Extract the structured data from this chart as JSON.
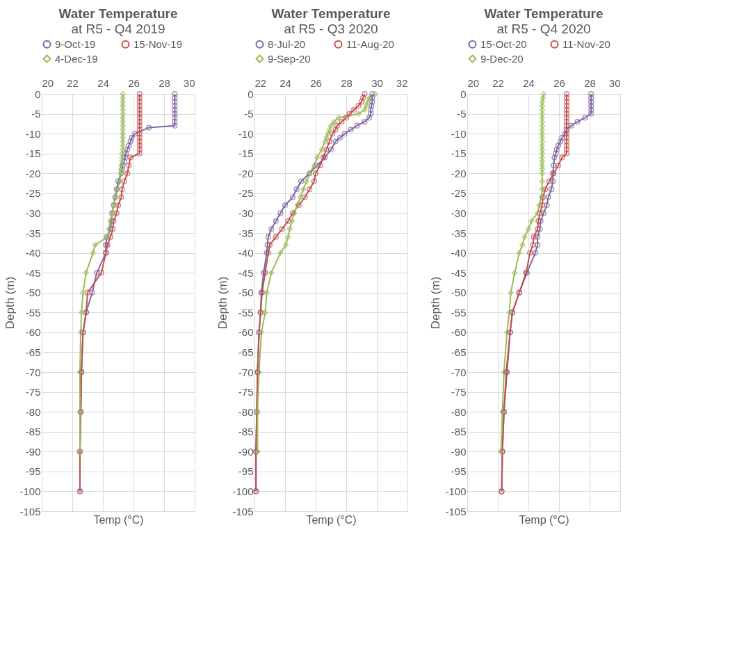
{
  "chart_data": [
    {
      "type": "line",
      "title": "Water Temperature",
      "subtitle": "at R5 - Q4 2019",
      "xlabel": "Temp (°C)",
      "ylabel": "Depth (m)",
      "xlim": [
        20,
        30
      ],
      "xticks": [
        20,
        22,
        24,
        26,
        28,
        30
      ],
      "ylim": [
        -105,
        0
      ],
      "yticks": [
        0,
        -5,
        -10,
        -15,
        -20,
        -25,
        -30,
        -35,
        -40,
        -45,
        -50,
        -55,
        -60,
        -65,
        -70,
        -75,
        -80,
        -85,
        -90,
        -95,
        -100,
        -105
      ],
      "grid": true,
      "legend": "top",
      "series": [
        {
          "name": "9-Oct-19",
          "color": "#8064a2",
          "marker": "circle",
          "x": [
            28.7,
            28.7,
            28.7,
            28.7,
            28.7,
            28.7,
            28.7,
            28.7,
            28.7,
            27.0,
            26.1,
            25.9,
            25.8,
            25.7,
            25.6,
            25.5,
            25.45,
            25.4,
            25.3,
            25.25,
            25.2,
            25.0,
            24.9,
            24.8,
            24.7,
            24.6,
            24.55,
            24.5,
            24.25,
            24.2,
            24.2,
            23.6,
            23.3,
            22.9,
            22.7,
            22.6,
            22.55,
            22.5,
            22.5
          ],
          "values": [
            0,
            -1,
            -2,
            -3,
            -4,
            -5,
            -6,
            -7,
            -8,
            -8.5,
            -10,
            -11,
            -12,
            -13,
            -14,
            -15,
            -16,
            -17,
            -18,
            -19,
            -20,
            -22,
            -24,
            -26,
            -28,
            -30,
            -32,
            -34,
            -36,
            -38,
            -40,
            -45,
            -50,
            -55,
            -60,
            -70,
            -80,
            -90,
            -100
          ]
        },
        {
          "name": "15-Nov-19",
          "color": "#c0504d",
          "marker": "circle",
          "x": [
            26.4,
            26.4,
            26.4,
            26.4,
            26.4,
            26.4,
            26.4,
            26.4,
            26.4,
            26.4,
            26.4,
            26.4,
            26.4,
            26.4,
            26.4,
            26.4,
            25.8,
            25.7,
            25.6,
            25.4,
            25.25,
            25.2,
            25.0,
            24.9,
            24.7,
            24.65,
            24.5,
            24.3,
            24.2,
            23.9,
            23.0,
            22.9,
            22.7,
            22.6,
            22.55,
            22.5,
            22.5
          ],
          "values": [
            0,
            -1,
            -2,
            -3,
            -4,
            -5,
            -6,
            -7,
            -8,
            -9,
            -10,
            -11,
            -12,
            -13,
            -14,
            -15,
            -16,
            -18,
            -20,
            -22,
            -24,
            -26,
            -28,
            -30,
            -32,
            -34,
            -36,
            -38,
            -40,
            -45,
            -50,
            -55,
            -60,
            -70,
            -80,
            -90,
            -100
          ]
        },
        {
          "name": "4-Dec-19",
          "color": "#9bbb59",
          "marker": "diamond",
          "x": [
            25.3,
            25.3,
            25.3,
            25.3,
            25.3,
            25.3,
            25.3,
            25.3,
            25.3,
            25.3,
            25.3,
            25.3,
            25.3,
            25.3,
            25.3,
            25.25,
            25.25,
            25.25,
            25.2,
            25.2,
            25.2,
            25.1,
            24.95,
            24.85,
            24.7,
            24.6,
            24.5,
            24.4,
            24.3,
            23.5,
            23.35,
            22.9,
            22.7,
            22.6,
            22.55,
            22.5,
            22.5,
            22.5
          ],
          "values": [
            0,
            -1,
            -2,
            -3,
            -4,
            -5,
            -6,
            -7,
            -8,
            -9,
            -10,
            -11,
            -12,
            -13,
            -14,
            -15,
            -16,
            -17,
            -18,
            -19,
            -20,
            -22,
            -24,
            -26,
            -28,
            -30,
            -32,
            -34,
            -36,
            -38,
            -40,
            -45,
            -50,
            -55,
            -60,
            -70,
            -80,
            -90
          ]
        }
      ]
    },
    {
      "type": "line",
      "title": "Water Temperature",
      "subtitle": "at R5 - Q3 2020",
      "xlabel": "Temp (°C)",
      "ylabel": "Depth (m)",
      "xlim": [
        22,
        32
      ],
      "xticks": [
        22,
        24,
        26,
        28,
        30,
        32
      ],
      "ylim": [
        -105,
        0
      ],
      "yticks": [
        0,
        -5,
        -10,
        -15,
        -20,
        -25,
        -30,
        -35,
        -40,
        -45,
        -50,
        -55,
        -60,
        -65,
        -70,
        -75,
        -80,
        -85,
        -90,
        -95,
        -100,
        -105
      ],
      "grid": true,
      "legend": "top",
      "series": [
        {
          "name": "8-Jul-20",
          "color": "#8064a2",
          "marker": "circle",
          "x": [
            29.7,
            29.7,
            29.7,
            29.65,
            29.6,
            29.6,
            29.5,
            29.2,
            28.7,
            28.3,
            27.9,
            27.6,
            27.3,
            27.0,
            26.6,
            26.1,
            25.6,
            25.05,
            24.75,
            24.5,
            24.0,
            23.7,
            23.4,
            23.1,
            22.9,
            22.85,
            22.8,
            22.6,
            22.45,
            22.4,
            22.3,
            22.2,
            22.15,
            22.1,
            22.1
          ],
          "values": [
            0,
            -1,
            -2,
            -3,
            -4,
            -5,
            -6,
            -7,
            -8,
            -9,
            -10,
            -11,
            -12,
            -14,
            -16,
            -18,
            -20,
            -22,
            -24,
            -26,
            -28,
            -30,
            -32,
            -34,
            -36,
            -38,
            -40,
            -45,
            -50,
            -55,
            -60,
            -70,
            -80,
            -90,
            -100
          ]
        },
        {
          "name": "11-Aug-20",
          "color": "#c0504d",
          "marker": "circle",
          "x": [
            29.2,
            29.1,
            29.0,
            28.8,
            28.5,
            28.2,
            28.0,
            27.7,
            27.4,
            27.3,
            27.1,
            26.9,
            26.7,
            26.5,
            26.3,
            26.0,
            25.9,
            25.6,
            25.3,
            24.9,
            24.5,
            24.2,
            23.8,
            23.4,
            23.0,
            22.9,
            22.7,
            22.5,
            22.4,
            22.3,
            22.2,
            22.15,
            22.1,
            22.1
          ],
          "values": [
            0,
            -1,
            -2,
            -3,
            -4,
            -5,
            -6,
            -7,
            -8,
            -9,
            -10,
            -12,
            -14,
            -16,
            -18,
            -20,
            -22,
            -24,
            -26,
            -28,
            -30,
            -32,
            -34,
            -36,
            -38,
            -40,
            -45,
            -50,
            -55,
            -60,
            -70,
            -80,
            -90,
            -100
          ]
        },
        {
          "name": "9-Sep-20",
          "color": "#9bbb59",
          "marker": "diamond",
          "x": [
            29.9,
            29.5,
            29.4,
            29.3,
            29.2,
            28.8,
            27.5,
            27.2,
            27.0,
            26.9,
            26.8,
            26.7,
            26.6,
            26.4,
            26.1,
            25.9,
            25.6,
            25.4,
            25.2,
            25.0,
            24.8,
            24.6,
            24.45,
            24.3,
            24.2,
            24.05,
            23.7,
            23.1,
            22.8,
            22.7,
            22.45,
            22.3,
            22.2,
            22.2
          ],
          "values": [
            0,
            -1,
            -2,
            -3,
            -4,
            -5,
            -6,
            -7,
            -8,
            -9,
            -10,
            -11,
            -12,
            -14,
            -16,
            -18,
            -20,
            -22,
            -24,
            -26,
            -28,
            -30,
            -32,
            -34,
            -36,
            -38,
            -40,
            -45,
            -50,
            -55,
            -60,
            -70,
            -80,
            -90
          ]
        }
      ]
    },
    {
      "type": "line",
      "title": "Water Temperature",
      "subtitle": "at R5 - Q4 2020",
      "xlabel": "Temp (°C)",
      "ylabel": "Depth (m)",
      "xlim": [
        20,
        30
      ],
      "xticks": [
        20,
        22,
        24,
        26,
        28,
        30
      ],
      "ylim": [
        -105,
        0
      ],
      "yticks": [
        0,
        -5,
        -10,
        -15,
        -20,
        -25,
        -30,
        -35,
        -40,
        -45,
        -50,
        -55,
        -60,
        -65,
        -70,
        -75,
        -80,
        -85,
        -90,
        -95,
        -100,
        -105
      ],
      "grid": true,
      "legend": "top",
      "series": [
        {
          "name": "15-Oct-20",
          "color": "#8064a2",
          "marker": "circle",
          "x": [
            28.1,
            28.1,
            28.1,
            28.1,
            28.1,
            28.1,
            27.7,
            27.2,
            26.8,
            26.5,
            26.4,
            26.2,
            26.1,
            25.95,
            25.85,
            25.8,
            25.7,
            25.65,
            25.6,
            25.6,
            25.5,
            25.3,
            25.2,
            25.0,
            24.8,
            24.75,
            24.6,
            24.6,
            24.45,
            23.9,
            23.4,
            22.95,
            22.8,
            22.6,
            22.4,
            22.3,
            22.25
          ],
          "values": [
            0,
            -1,
            -2,
            -3,
            -4,
            -5,
            -6,
            -7,
            -8,
            -9,
            -10,
            -11,
            -12,
            -13,
            -14,
            -15,
            -16,
            -18,
            -20,
            -22,
            -24,
            -26,
            -28,
            -30,
            -32,
            -34,
            -36,
            -38,
            -40,
            -45,
            -50,
            -55,
            -60,
            -70,
            -80,
            -90,
            -100
          ]
        },
        {
          "name": "11-Nov-20",
          "color": "#c0504d",
          "marker": "circle",
          "x": [
            26.5,
            26.5,
            26.5,
            26.5,
            26.5,
            26.5,
            26.5,
            26.5,
            26.5,
            26.5,
            26.5,
            26.5,
            26.5,
            26.5,
            26.5,
            26.5,
            26.2,
            25.95,
            25.65,
            25.35,
            25.1,
            24.95,
            24.9,
            24.75,
            24.65,
            24.6,
            24.35,
            24.3,
            24.1,
            23.85,
            23.4,
            22.95,
            22.8,
            22.55,
            22.4,
            22.3,
            22.25
          ],
          "values": [
            0,
            -1,
            -2,
            -3,
            -4,
            -5,
            -6,
            -7,
            -8,
            -9,
            -10,
            -11,
            -12,
            -13,
            -14,
            -15,
            -16,
            -18,
            -20,
            -22,
            -24,
            -26,
            -28,
            -30,
            -32,
            -34,
            -36,
            -38,
            -40,
            -45,
            -50,
            -55,
            -60,
            -70,
            -80,
            -90,
            -100
          ]
        },
        {
          "name": "9-Dec-20",
          "color": "#9bbb59",
          "marker": "diamond",
          "x": [
            25.0,
            24.95,
            24.9,
            24.9,
            24.9,
            24.9,
            24.9,
            24.9,
            24.9,
            24.9,
            24.9,
            24.9,
            24.9,
            24.9,
            24.9,
            24.9,
            24.9,
            24.9,
            24.9,
            24.9,
            24.9,
            24.9,
            24.9,
            24.85,
            24.7,
            24.6,
            24.2,
            24.0,
            23.75,
            23.6,
            23.4,
            23.1,
            22.85,
            22.75,
            22.6,
            22.4,
            22.3,
            22.2
          ],
          "values": [
            0,
            -1,
            -2,
            -3,
            -4,
            -5,
            -6,
            -7,
            -8,
            -9,
            -10,
            -11,
            -12,
            -13,
            -14,
            -15,
            -16,
            -17,
            -18,
            -19,
            -20,
            -22,
            -24,
            -26,
            -28,
            -30,
            -32,
            -34,
            -36,
            -38,
            -40,
            -45,
            -50,
            -55,
            -60,
            -70,
            -80,
            -90
          ]
        }
      ]
    }
  ]
}
